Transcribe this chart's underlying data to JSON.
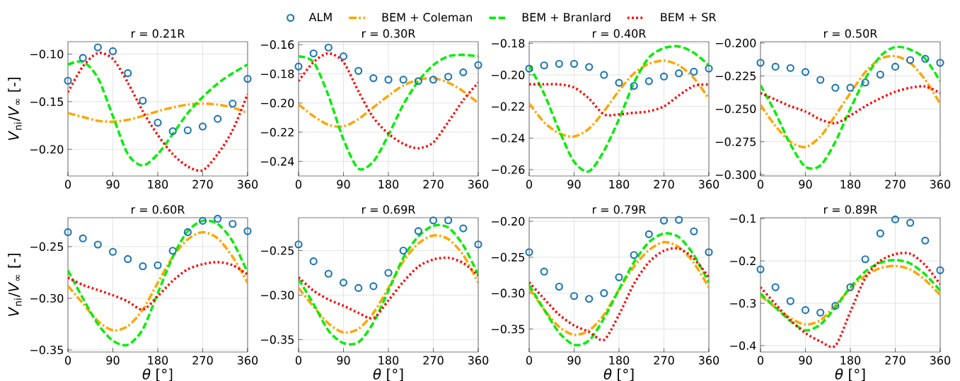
{
  "chart_data": [
    {
      "type": "line",
      "title": "r = 0.21R",
      "ylabel": "*V*$_{ni}$/*V*$_{∞}$  [-]",
      "legend": "top",
      "grid": true,
      "xlim": [
        0,
        360
      ],
      "xticks": [
        0,
        90,
        180,
        270,
        360
      ],
      "ylim": [
        -0.228,
        -0.087
      ],
      "yticks": [
        {
          "value": -0.2,
          "label": "−0.20"
        },
        {
          "value": -0.15,
          "label": "−0.15"
        },
        {
          "value": -0.1,
          "label": "−0.10"
        }
      ],
      "x": [
        0,
        30,
        60,
        90,
        120,
        150,
        180,
        210,
        240,
        270,
        300,
        330,
        360
      ],
      "series": [
        {
          "name": "ALM",
          "type": "scatter",
          "marker": "circle",
          "color": "#1f77b4",
          "values": [
            -0.128,
            -0.104,
            -0.093,
            -0.097,
            -0.12,
            -0.149,
            -0.172,
            -0.181,
            -0.18,
            -0.176,
            -0.168,
            -0.152,
            -0.126
          ]
        },
        {
          "name": "BEM + Coleman",
          "line_style": "dashdot",
          "color": "#ffa500",
          "values": [
            -0.162,
            -0.166,
            -0.17,
            -0.171,
            -0.169,
            -0.165,
            -0.16,
            -0.156,
            -0.153,
            -0.152,
            -0.153,
            -0.156,
            -0.162
          ]
        },
        {
          "name": "BEM + Branlard",
          "line_style": "dashed",
          "color": "#00ee00",
          "values": [
            -0.111,
            -0.108,
            -0.125,
            -0.165,
            -0.205,
            -0.217,
            -0.205,
            -0.184,
            -0.162,
            -0.145,
            -0.131,
            -0.12,
            -0.111
          ]
        },
        {
          "name": "BEM + SR",
          "line_style": "dotted",
          "color": "#ff0000",
          "values": [
            -0.14,
            -0.113,
            -0.099,
            -0.105,
            -0.13,
            -0.16,
            -0.185,
            -0.205,
            -0.218,
            -0.222,
            -0.205,
            -0.18,
            -0.142
          ]
        }
      ]
    },
    {
      "type": "line",
      "title": "r = 0.30R",
      "grid": true,
      "xlim": [
        0,
        360
      ],
      "xticks": [
        0,
        90,
        180,
        270,
        360
      ],
      "ylim": [
        -0.25,
        -0.158
      ],
      "yticks": [
        {
          "value": -0.24,
          "label": "−0.24"
        },
        {
          "value": -0.22,
          "label": "−0.22"
        },
        {
          "value": -0.2,
          "label": "−0.20"
        },
        {
          "value": -0.18,
          "label": "−0.18"
        },
        {
          "value": -0.16,
          "label": "−0.16"
        }
      ],
      "x": [
        0,
        30,
        60,
        90,
        120,
        150,
        180,
        210,
        240,
        270,
        300,
        330,
        360
      ],
      "series": [
        {
          "type": "scatter",
          "marker": "circle",
          "color": "#1f77b4",
          "values": [
            -0.175,
            -0.166,
            -0.162,
            -0.168,
            -0.178,
            -0.183,
            -0.184,
            -0.184,
            -0.185,
            -0.184,
            -0.182,
            -0.179,
            -0.174
          ]
        },
        {
          "line_style": "dashdot",
          "color": "#ffa500",
          "values": [
            -0.201,
            -0.209,
            -0.215,
            -0.216,
            -0.211,
            -0.203,
            -0.195,
            -0.188,
            -0.184,
            -0.183,
            -0.186,
            -0.192,
            -0.2
          ]
        },
        {
          "line_style": "dashed",
          "color": "#00ee00",
          "values": [
            -0.168,
            -0.172,
            -0.195,
            -0.225,
            -0.245,
            -0.24,
            -0.222,
            -0.201,
            -0.185,
            -0.174,
            -0.168,
            -0.167,
            -0.168
          ]
        },
        {
          "line_style": "dotted",
          "color": "#ff0000",
          "values": [
            -0.185,
            -0.172,
            -0.166,
            -0.172,
            -0.192,
            -0.21,
            -0.221,
            -0.228,
            -0.231,
            -0.227,
            -0.213,
            -0.198,
            -0.186
          ]
        }
      ]
    },
    {
      "type": "line",
      "title": "r = 0.40R",
      "grid": true,
      "xlim": [
        0,
        360
      ],
      "xticks": [
        0,
        90,
        180,
        270,
        360
      ],
      "ylim": [
        -0.264,
        -0.179
      ],
      "yticks": [
        {
          "value": -0.26,
          "label": "−0.26"
        },
        {
          "value": -0.24,
          "label": "−0.24"
        },
        {
          "value": -0.22,
          "label": "−0.22"
        },
        {
          "value": -0.2,
          "label": "−0.20"
        },
        {
          "value": -0.18,
          "label": "−0.18"
        }
      ],
      "x": [
        0,
        30,
        60,
        90,
        120,
        150,
        180,
        210,
        240,
        270,
        300,
        330,
        360
      ],
      "series": [
        {
          "type": "scatter",
          "marker": "circle",
          "color": "#1f77b4",
          "values": [
            -0.196,
            -0.194,
            -0.193,
            -0.193,
            -0.195,
            -0.2,
            -0.205,
            -0.207,
            -0.204,
            -0.201,
            -0.199,
            -0.198,
            -0.196
          ]
        },
        {
          "line_style": "dashdot",
          "color": "#ffa500",
          "values": [
            -0.218,
            -0.23,
            -0.237,
            -0.239,
            -0.234,
            -0.223,
            -0.21,
            -0.199,
            -0.193,
            -0.191,
            -0.194,
            -0.202,
            -0.215
          ]
        },
        {
          "line_style": "dashed",
          "color": "#00ee00",
          "values": [
            -0.194,
            -0.212,
            -0.235,
            -0.255,
            -0.261,
            -0.248,
            -0.228,
            -0.205,
            -0.189,
            -0.183,
            -0.182,
            -0.186,
            -0.194
          ]
        },
        {
          "line_style": "dotted",
          "color": "#ff0000",
          "values": [
            -0.206,
            -0.206,
            -0.206,
            -0.208,
            -0.215,
            -0.225,
            -0.225,
            -0.224,
            -0.223,
            -0.22,
            -0.213,
            -0.207,
            -0.206
          ]
        }
      ]
    },
    {
      "type": "line",
      "title": "r = 0.50R",
      "grid": true,
      "xlim": [
        0,
        360
      ],
      "xticks": [
        0,
        90,
        180,
        270,
        360
      ],
      "ylim": [
        -0.301,
        -0.199
      ],
      "yticks": [
        {
          "value": -0.3,
          "label": "−0.300"
        },
        {
          "value": -0.275,
          "label": "−0.275"
        },
        {
          "value": -0.25,
          "label": "−0.250"
        },
        {
          "value": -0.225,
          "label": "−0.225"
        },
        {
          "value": -0.2,
          "label": "−0.200"
        }
      ],
      "x": [
        0,
        30,
        60,
        90,
        120,
        150,
        180,
        210,
        240,
        270,
        300,
        330,
        360
      ],
      "series": [
        {
          "type": "scatter",
          "marker": "circle",
          "color": "#1f77b4",
          "values": [
            -0.215,
            -0.218,
            -0.219,
            -0.222,
            -0.228,
            -0.234,
            -0.234,
            -0.23,
            -0.224,
            -0.218,
            -0.213,
            -0.212,
            -0.215
          ]
        },
        {
          "line_style": "dashdot",
          "color": "#ffa500",
          "values": [
            -0.247,
            -0.263,
            -0.275,
            -0.279,
            -0.271,
            -0.255,
            -0.238,
            -0.222,
            -0.212,
            -0.21,
            -0.215,
            -0.228,
            -0.246
          ]
        },
        {
          "line_style": "dashed",
          "color": "#00ee00",
          "values": [
            -0.232,
            -0.253,
            -0.277,
            -0.294,
            -0.293,
            -0.275,
            -0.25,
            -0.227,
            -0.21,
            -0.203,
            -0.205,
            -0.212,
            -0.229
          ]
        },
        {
          "line_style": "dotted",
          "color": "#ff0000",
          "values": [
            -0.238,
            -0.243,
            -0.248,
            -0.252,
            -0.258,
            -0.261,
            -0.255,
            -0.248,
            -0.242,
            -0.237,
            -0.234,
            -0.233,
            -0.238
          ]
        }
      ]
    },
    {
      "type": "line",
      "title": "r = 0.60R",
      "ylabel": "*V*$_{ni}$/*V*$_{∞}$  [-]",
      "xlabel": "*θ* [°]",
      "grid": true,
      "xlim": [
        0,
        360
      ],
      "xticks": [
        0,
        90,
        180,
        270,
        360
      ],
      "ylim": [
        -0.352,
        -0.222
      ],
      "yticks": [
        {
          "value": -0.35,
          "label": "−0.35"
        },
        {
          "value": -0.3,
          "label": "−0.30"
        },
        {
          "value": -0.25,
          "label": "−0.25"
        }
      ],
      "x": [
        0,
        30,
        60,
        90,
        120,
        150,
        180,
        210,
        240,
        270,
        300,
        330,
        360
      ],
      "series": [
        {
          "type": "scatter",
          "marker": "circle",
          "color": "#1f77b4",
          "values": [
            -0.236,
            -0.242,
            -0.248,
            -0.255,
            -0.262,
            -0.269,
            -0.268,
            -0.254,
            -0.236,
            -0.225,
            -0.223,
            -0.228,
            -0.235
          ]
        },
        {
          "line_style": "dashdot",
          "color": "#ffa500",
          "values": [
            -0.288,
            -0.305,
            -0.322,
            -0.331,
            -0.327,
            -0.311,
            -0.285,
            -0.26,
            -0.243,
            -0.236,
            -0.242,
            -0.26,
            -0.285
          ]
        },
        {
          "line_style": "dashed",
          "color": "#00ee00",
          "values": [
            -0.273,
            -0.3,
            -0.325,
            -0.341,
            -0.345,
            -0.33,
            -0.295,
            -0.26,
            -0.235,
            -0.225,
            -0.228,
            -0.245,
            -0.275
          ]
        },
        {
          "line_style": "dotted",
          "color": "#ff0000",
          "values": [
            -0.28,
            -0.287,
            -0.292,
            -0.297,
            -0.303,
            -0.311,
            -0.298,
            -0.283,
            -0.272,
            -0.267,
            -0.265,
            -0.268,
            -0.277
          ]
        }
      ]
    },
    {
      "type": "line",
      "title": "r = 0.69R",
      "xlabel": "*θ* [°]",
      "grid": true,
      "xlim": [
        0,
        360
      ],
      "xticks": [
        0,
        90,
        180,
        270,
        360
      ],
      "ylim": [
        -0.364,
        -0.213
      ],
      "yticks": [
        {
          "value": -0.35,
          "label": "−0.35"
        },
        {
          "value": -0.3,
          "label": "−0.30"
        },
        {
          "value": -0.25,
          "label": "−0.25"
        }
      ],
      "x": [
        0,
        30,
        60,
        90,
        120,
        150,
        180,
        210,
        240,
        270,
        300,
        330,
        360
      ],
      "series": [
        {
          "type": "scatter",
          "marker": "circle",
          "color": "#1f77b4",
          "values": [
            -0.243,
            -0.262,
            -0.276,
            -0.286,
            -0.292,
            -0.29,
            -0.275,
            -0.25,
            -0.228,
            -0.216,
            -0.216,
            -0.225,
            -0.243
          ]
        },
        {
          "line_style": "dashdot",
          "color": "#ffa500",
          "values": [
            -0.292,
            -0.313,
            -0.332,
            -0.342,
            -0.338,
            -0.32,
            -0.292,
            -0.262,
            -0.242,
            -0.233,
            -0.237,
            -0.255,
            -0.286
          ]
        },
        {
          "line_style": "dashed",
          "color": "#00ee00",
          "values": [
            -0.282,
            -0.31,
            -0.34,
            -0.354,
            -0.353,
            -0.331,
            -0.295,
            -0.258,
            -0.234,
            -0.222,
            -0.224,
            -0.244,
            -0.277
          ]
        },
        {
          "line_style": "dotted",
          "color": "#ff0000",
          "values": [
            -0.28,
            -0.295,
            -0.305,
            -0.312,
            -0.32,
            -0.326,
            -0.306,
            -0.285,
            -0.268,
            -0.26,
            -0.258,
            -0.264,
            -0.278
          ]
        }
      ]
    },
    {
      "type": "line",
      "title": "r = 0.79R",
      "xlabel": "*θ* [°]",
      "grid": true,
      "xlim": [
        0,
        360
      ],
      "xticks": [
        0,
        90,
        180,
        270,
        360
      ],
      "ylim": [
        -0.382,
        -0.195
      ],
      "yticks": [
        {
          "value": -0.35,
          "label": "−0.35"
        },
        {
          "value": -0.3,
          "label": "−0.30"
        },
        {
          "value": -0.25,
          "label": "−0.25"
        },
        {
          "value": -0.2,
          "label": "−0.20"
        }
      ],
      "x": [
        0,
        30,
        60,
        90,
        120,
        150,
        180,
        210,
        240,
        270,
        300,
        330,
        360
      ],
      "series": [
        {
          "type": "scatter",
          "marker": "circle",
          "color": "#1f77b4",
          "values": [
            -0.243,
            -0.27,
            -0.291,
            -0.304,
            -0.308,
            -0.3,
            -0.278,
            -0.247,
            -0.218,
            -0.199,
            -0.198,
            -0.214,
            -0.243
          ]
        },
        {
          "line_style": "dashdot",
          "color": "#ffa500",
          "values": [
            -0.293,
            -0.323,
            -0.347,
            -0.358,
            -0.352,
            -0.33,
            -0.295,
            -0.263,
            -0.24,
            -0.229,
            -0.236,
            -0.258,
            -0.292
          ]
        },
        {
          "line_style": "dashed",
          "color": "#00ee00",
          "values": [
            -0.289,
            -0.323,
            -0.355,
            -0.372,
            -0.366,
            -0.335,
            -0.295,
            -0.257,
            -0.229,
            -0.217,
            -0.222,
            -0.247,
            -0.285
          ]
        },
        {
          "line_style": "dotted",
          "color": "#ff0000",
          "values": [
            -0.285,
            -0.308,
            -0.33,
            -0.345,
            -0.354,
            -0.365,
            -0.33,
            -0.287,
            -0.257,
            -0.241,
            -0.238,
            -0.252,
            -0.278
          ]
        }
      ]
    },
    {
      "type": "line",
      "title": "r = 0.89R",
      "xlabel": "*θ* [°]",
      "grid": true,
      "xlim": [
        0,
        360
      ],
      "xticks": [
        0,
        90,
        180,
        270,
        360
      ],
      "ylim": [
        -0.415,
        -0.098
      ],
      "yticks": [
        {
          "value": -0.4,
          "label": "−0.4"
        },
        {
          "value": -0.3,
          "label": "−0.3"
        },
        {
          "value": -0.2,
          "label": "−0.2"
        },
        {
          "value": -0.1,
          "label": "−0.1"
        }
      ],
      "x": [
        0,
        30,
        60,
        90,
        120,
        150,
        180,
        210,
        240,
        270,
        300,
        330,
        360
      ],
      "series": [
        {
          "type": "scatter",
          "marker": "circle",
          "color": "#1f77b4",
          "values": [
            -0.22,
            -0.262,
            -0.295,
            -0.316,
            -0.322,
            -0.306,
            -0.262,
            -0.196,
            -0.135,
            -0.102,
            -0.11,
            -0.152,
            -0.222
          ]
        },
        {
          "line_style": "dashdot",
          "color": "#ffa500",
          "values": [
            -0.282,
            -0.31,
            -0.335,
            -0.35,
            -0.34,
            -0.305,
            -0.265,
            -0.235,
            -0.217,
            -0.212,
            -0.22,
            -0.245,
            -0.28
          ]
        },
        {
          "line_style": "dashed",
          "color": "#00ee00",
          "values": [
            -0.277,
            -0.31,
            -0.342,
            -0.364,
            -0.35,
            -0.31,
            -0.262,
            -0.225,
            -0.204,
            -0.198,
            -0.206,
            -0.232,
            -0.27
          ]
        },
        {
          "line_style": "dotted",
          "color": "#ff0000",
          "values": [
            -0.262,
            -0.302,
            -0.34,
            -0.37,
            -0.39,
            -0.4,
            -0.32,
            -0.24,
            -0.2,
            -0.184,
            -0.183,
            -0.21,
            -0.255
          ]
        }
      ]
    }
  ]
}
